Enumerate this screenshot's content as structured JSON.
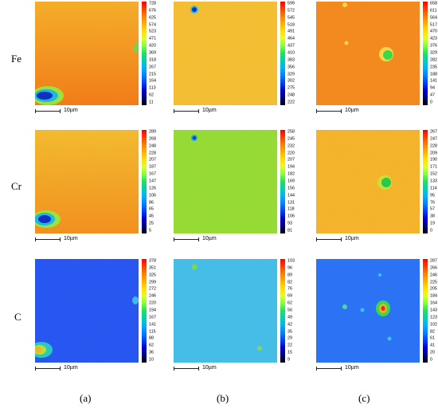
{
  "rows": [
    {
      "label": "Fe"
    },
    {
      "label": "Cr"
    },
    {
      "label": "C"
    }
  ],
  "columns": [
    {
      "label": "(a)"
    },
    {
      "label": "(b)"
    },
    {
      "label": "(c)"
    }
  ],
  "scale_bar": "10µm",
  "maps": [
    [
      {
        "ticks": [
          "728",
          "676",
          "625",
          "574",
          "523",
          "471",
          "420",
          "369",
          "318",
          "267",
          "215",
          "164",
          "113",
          "62",
          "11"
        ]
      },
      {
        "ticks": [
          "599",
          "572",
          "545",
          "518",
          "491",
          "464",
          "437",
          "410",
          "383",
          "356",
          "329",
          "302",
          "275",
          "248",
          "222"
        ]
      },
      {
        "ticks": [
          "658",
          "611",
          "564",
          "517",
          "470",
          "423",
          "376",
          "329",
          "282",
          "235",
          "188",
          "141",
          "94",
          "47",
          "0"
        ]
      }
    ],
    [
      {
        "ticks": [
          "289",
          "268",
          "248",
          "228",
          "207",
          "187",
          "167",
          "147",
          "126",
          "106",
          "86",
          "65",
          "45",
          "25",
          "5"
        ]
      },
      {
        "ticks": [
          "258",
          "245",
          "232",
          "220",
          "207",
          "194",
          "182",
          "169",
          "156",
          "144",
          "131",
          "118",
          "106",
          "93",
          "81"
        ]
      },
      {
        "ticks": [
          "267",
          "247",
          "228",
          "209",
          "190",
          "171",
          "152",
          "133",
          "114",
          "95",
          "76",
          "57",
          "38",
          "19",
          "0"
        ]
      }
    ],
    [
      {
        "ticks": [
          "378",
          "351",
          "325",
          "299",
          "272",
          "246",
          "220",
          "194",
          "167",
          "141",
          "115",
          "88",
          "62",
          "36",
          "10"
        ]
      },
      {
        "ticks": [
          "103",
          "96",
          "89",
          "82",
          "76",
          "69",
          "62",
          "56",
          "49",
          "42",
          "35",
          "29",
          "22",
          "15",
          "9"
        ]
      },
      {
        "ticks": [
          "287",
          "266",
          "246",
          "225",
          "205",
          "184",
          "164",
          "143",
          "123",
          "102",
          "82",
          "61",
          "41",
          "20",
          "0"
        ]
      }
    ]
  ],
  "colors": {
    "fe_bg": "#f5a82a",
    "fe_b_bg": "#f0c23a",
    "cr_b_bg": "#9ede3a",
    "c_a_bg": "#1f4ff0",
    "c_b_bg": "#4cc8d8",
    "c_c_bg": "#2a6cf5",
    "colorbar": [
      "#ff0000",
      "#ff4000",
      "#ff8000",
      "#ffb000",
      "#ffe000",
      "#e0ff20",
      "#80ff40",
      "#20e060",
      "#00d0b0",
      "#00b0ff",
      "#0080ff",
      "#0040ff",
      "#0000d0",
      "#000080",
      "#000000"
    ]
  }
}
